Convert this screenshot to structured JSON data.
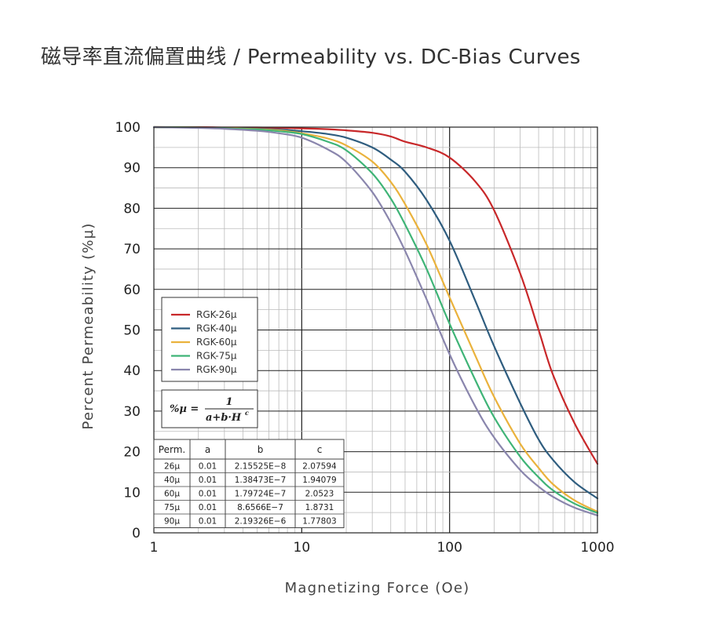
{
  "title": "磁导率直流偏置曲线 / Permeability vs. DC-Bias Curves",
  "colors": {
    "RGK-26µ": "#c8282a",
    "RGK-40µ": "#2f5d7f",
    "RGK-60µ": "#eab23c",
    "RGK-75µ": "#3fb477",
    "RGK-90µ": "#8a86ad"
  },
  "chart_data": {
    "type": "line",
    "xlabel": "Magnetizing Force (Oe)",
    "ylabel": "Percent Permeability (%µ)",
    "x_scale": "log",
    "xlim": [
      1,
      1000
    ],
    "ylim": [
      0,
      100
    ],
    "x_ticks": [
      "1",
      "10",
      "100",
      "1000"
    ],
    "y_ticks": [
      "0",
      "10",
      "20",
      "30",
      "40",
      "50",
      "60",
      "70",
      "80",
      "90",
      "100"
    ],
    "grid": true,
    "legend_position": "left-middle",
    "x": [
      1,
      2,
      3,
      5,
      7,
      10,
      15,
      20,
      30,
      40,
      50,
      70,
      100,
      150,
      200,
      300,
      400,
      500,
      700,
      1000
    ],
    "series": [
      {
        "name": "RGK-26µ",
        "values": [
          100,
          100,
          99.9,
          99.9,
          99.8,
          99.7,
          99.5,
          99.2,
          98.6,
          97.7,
          96.4,
          95,
          92.5,
          86.5,
          79.5,
          64,
          50,
          39,
          27,
          17
        ]
      },
      {
        "name": "RGK-40µ",
        "values": [
          100,
          99.9,
          99.8,
          99.6,
          99.4,
          99,
          98.3,
          97.4,
          95,
          92,
          89,
          82,
          72,
          57,
          46,
          32,
          23,
          18,
          12.5,
          8.5
        ]
      },
      {
        "name": "RGK-60µ",
        "values": [
          100,
          99.9,
          99.8,
          99.5,
          99.2,
          98.5,
          97.2,
          95.5,
          91.5,
          86.5,
          81,
          71,
          58,
          43.5,
          33.5,
          22,
          16,
          12,
          8,
          5.2
        ]
      },
      {
        "name": "RGK-75µ",
        "values": [
          100,
          99.9,
          99.7,
          99.4,
          99,
          98.3,
          96.4,
          94.3,
          88.6,
          82.4,
          76,
          65,
          51.5,
          37.5,
          28.5,
          18.8,
          13.7,
          10.5,
          7.2,
          4.9
        ]
      },
      {
        "name": "RGK-90µ",
        "values": [
          100,
          99.8,
          99.6,
          99.1,
          98.5,
          97.4,
          94.5,
          91.4,
          84,
          76.5,
          69.5,
          57.5,
          44,
          31,
          23.5,
          15.5,
          11.4,
          8.9,
          6.2,
          4.3
        ]
      }
    ],
    "formula": {
      "lhs": "%µ =",
      "numerator": "1",
      "denominator": "a+b·H",
      "exponent": "c"
    },
    "table": {
      "columns": [
        "Perm.",
        "a",
        "b",
        "c"
      ],
      "rows": [
        [
          "26µ",
          "0.01",
          "2.15525E−8",
          "2.07594"
        ],
        [
          "40µ",
          "0.01",
          "1.38473E−7",
          "1.94079"
        ],
        [
          "60µ",
          "0.01",
          "1.79724E−7",
          "2.0523"
        ],
        [
          "75µ",
          "0.01",
          "8.6566E−7",
          "1.8731"
        ],
        [
          "90µ",
          "0.01",
          "2.19326E−6",
          "1.77803"
        ]
      ]
    }
  }
}
